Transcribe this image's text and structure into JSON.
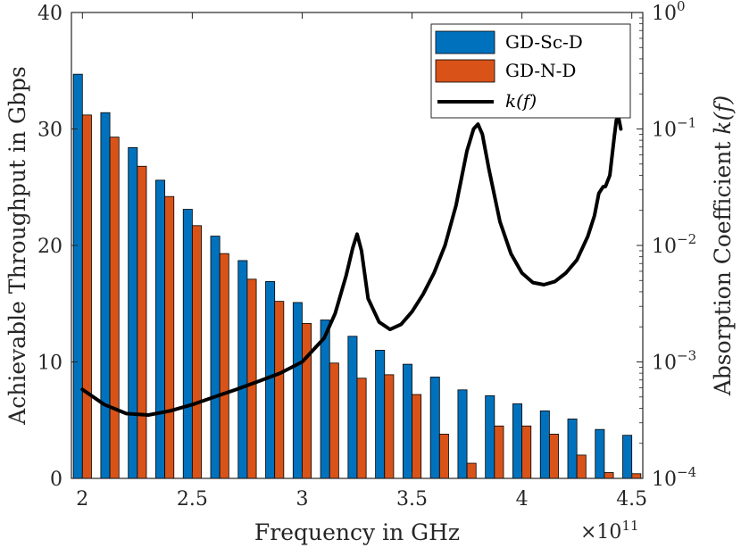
{
  "chart_data": {
    "type": "bar",
    "x": [
      2.0,
      2.125,
      2.25,
      2.375,
      2.5,
      2.625,
      2.75,
      2.875,
      3.0,
      3.125,
      3.25,
      3.375,
      3.5,
      3.625,
      3.75,
      3.875,
      4.0,
      4.125,
      4.25,
      4.375,
      4.5
    ],
    "series": [
      {
        "name": "GD-Sc-D",
        "color": "#0072BD",
        "values": [
          34.7,
          31.4,
          28.4,
          25.6,
          23.1,
          20.8,
          18.7,
          16.9,
          15.1,
          13.6,
          12.2,
          11.0,
          9.8,
          8.7,
          7.6,
          7.1,
          6.4,
          5.8,
          5.1,
          4.2,
          3.7
        ]
      },
      {
        "name": "GD-N-D",
        "color": "#D95319",
        "values": [
          31.2,
          29.3,
          26.8,
          24.2,
          21.7,
          19.3,
          17.1,
          15.2,
          13.3,
          9.9,
          8.6,
          8.9,
          7.2,
          3.8,
          1.3,
          4.5,
          4.5,
          3.8,
          2.0,
          0.5,
          0.4
        ]
      },
      {
        "name": "k(f)",
        "color": "#000000",
        "axis": "right",
        "x": [
          2.0,
          2.1,
          2.2,
          2.3,
          2.4,
          2.5,
          2.6,
          2.7,
          2.8,
          2.9,
          3.0,
          3.1,
          3.15,
          3.2,
          3.23,
          3.25,
          3.27,
          3.3,
          3.35,
          3.4,
          3.45,
          3.5,
          3.55,
          3.6,
          3.65,
          3.7,
          3.75,
          3.78,
          3.8,
          3.82,
          3.85,
          3.9,
          3.95,
          4.0,
          4.05,
          4.1,
          4.15,
          4.2,
          4.25,
          4.3,
          4.33,
          4.35,
          4.37,
          4.38,
          4.4,
          4.42,
          4.43,
          4.44,
          4.45
        ],
        "values": [
          0.00058,
          0.00043,
          0.00036,
          0.00035,
          0.00038,
          0.00043,
          0.0005,
          0.00058,
          0.00068,
          0.0008,
          0.001,
          0.0016,
          0.0026,
          0.0055,
          0.0095,
          0.0125,
          0.009,
          0.0035,
          0.0022,
          0.0019,
          0.0021,
          0.0027,
          0.0038,
          0.0058,
          0.01,
          0.022,
          0.065,
          0.1,
          0.11,
          0.09,
          0.045,
          0.016,
          0.0085,
          0.0058,
          0.0048,
          0.0046,
          0.0049,
          0.0058,
          0.0075,
          0.012,
          0.018,
          0.028,
          0.032,
          0.032,
          0.04,
          0.085,
          0.12,
          0.125,
          0.1
        ]
      }
    ],
    "xlim": [
      1.95,
      4.55
    ],
    "xticks": [
      "2",
      "2.5",
      "3",
      "3.5",
      "4",
      "4.5"
    ],
    "xtick_values": [
      2,
      2.5,
      3,
      3.5,
      4,
      4.5
    ],
    "x_exponent": "×10",
    "x_exponent_power": "11",
    "ylim": [
      0,
      40
    ],
    "yticks": [
      "0",
      "10",
      "20",
      "30",
      "40"
    ],
    "ytick_values": [
      0,
      10,
      20,
      30,
      40
    ],
    "y2lim": [
      0.0001,
      1
    ],
    "y2scale": "log",
    "y2ticks": [
      {
        "base": "10",
        "exp": "−4",
        "value": 0.0001
      },
      {
        "base": "10",
        "exp": "−3",
        "value": 0.001
      },
      {
        "base": "10",
        "exp": "−2",
        "value": 0.01
      },
      {
        "base": "10",
        "exp": "−1",
        "value": 0.1
      },
      {
        "base": "10",
        "exp": "0",
        "value": 1
      }
    ],
    "xlabel": "Frequency in GHz",
    "ylabel": "Achievable Throughput in Gbps",
    "y2label": "Absorption Coefficient",
    "y2label_math": "k(f)",
    "legend": {
      "position": "top-right",
      "entries": [
        "GD-Sc-D",
        "GD-N-D",
        "k(f)"
      ]
    },
    "grid": false
  }
}
